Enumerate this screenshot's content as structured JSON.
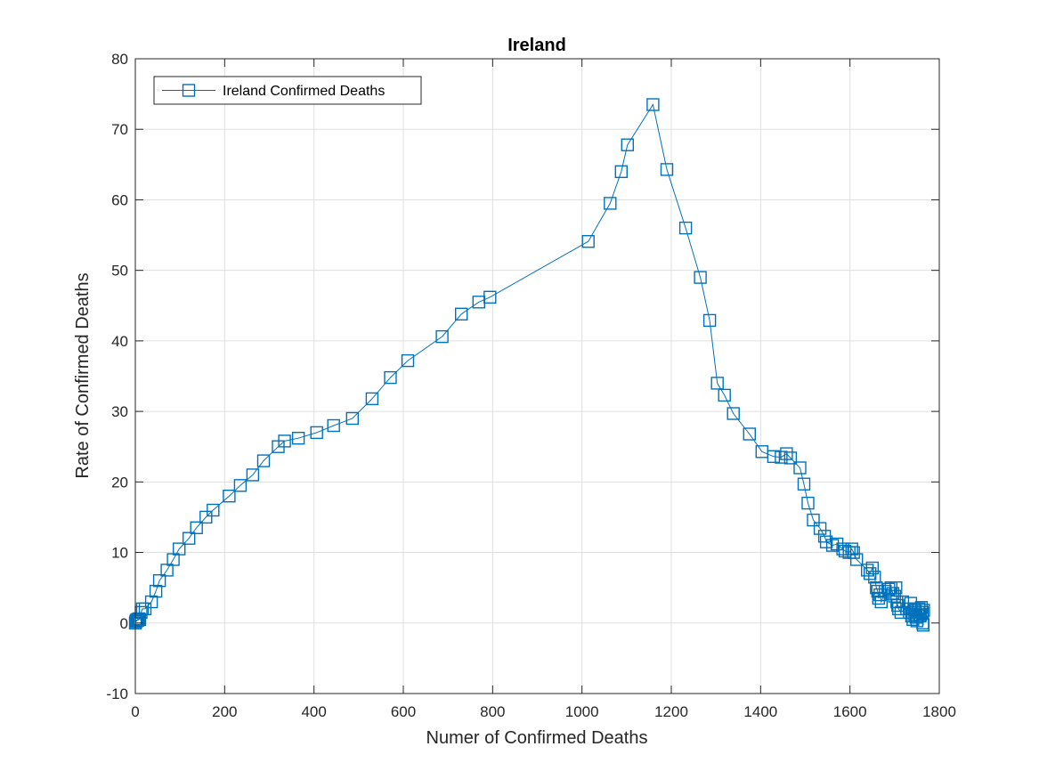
{
  "chart_data": {
    "type": "line",
    "title": "Ireland",
    "xlabel": "Numer of Confirmed Deaths",
    "ylabel": "Rate of Confirmed Deaths",
    "xlim": [
      0,
      1800
    ],
    "ylim": [
      -10,
      80
    ],
    "xticks": [
      0,
      200,
      400,
      600,
      800,
      1000,
      1200,
      1400,
      1600,
      1800
    ],
    "yticks": [
      -10,
      0,
      10,
      20,
      30,
      40,
      50,
      60,
      70,
      80
    ],
    "xtick_labels": [
      "0",
      "200",
      "400",
      "600",
      "800",
      "1000",
      "1200",
      "1400",
      "1600",
      "1800"
    ],
    "ytick_labels": [
      "-10",
      "0",
      "10",
      "20",
      "30",
      "40",
      "50",
      "60",
      "70",
      "80"
    ],
    "grid": true,
    "legend_position": "top-left",
    "series": [
      {
        "name": "Ireland Confirmed Deaths",
        "color": "#0072BD",
        "marker": "square",
        "x": [
          0,
          1,
          2,
          3,
          5,
          6,
          8,
          10,
          13,
          16,
          22,
          36,
          46,
          54,
          71,
          85,
          98,
          120,
          137,
          158,
          174,
          210,
          235,
          263,
          287,
          320,
          334,
          365,
          406,
          444,
          486,
          530,
          571,
          610,
          687,
          730,
          769,
          794,
          1014,
          1063,
          1088,
          1102,
          1159,
          1190,
          1232,
          1265,
          1286,
          1303,
          1319,
          1339,
          1375,
          1403,
          1429,
          1446,
          1458,
          1467,
          1488,
          1497,
          1506,
          1518,
          1533,
          1543,
          1547,
          1561,
          1571,
          1584,
          1589,
          1598,
          1604,
          1608,
          1615,
          1639,
          1645,
          1650,
          1655,
          1659,
          1662,
          1664,
          1667,
          1670,
          1679,
          1687,
          1692,
          1696,
          1700,
          1703,
          1705,
          1707,
          1709,
          1714,
          1718,
          1727,
          1733,
          1736,
          1738,
          1741,
          1743,
          1745,
          1746,
          1748,
          1750,
          1753,
          1755,
          1757,
          1758,
          1760,
          1762,
          1763,
          1764,
          1765
        ],
        "y": [
          0,
          0.2,
          0.4,
          0.3,
          0.5,
          0.4,
          0.6,
          0.5,
          1.5,
          2,
          2,
          3,
          4.5,
          6,
          7.5,
          9,
          10.5,
          12,
          13.5,
          15,
          16,
          18,
          19.5,
          21,
          23,
          25,
          25.8,
          26.2,
          27,
          28,
          29,
          31.8,
          34.8,
          37.2,
          40.6,
          43.8,
          45.5,
          46.2,
          54.1,
          59.5,
          64,
          67.8,
          73.5,
          64.3,
          56,
          49,
          42.9,
          34,
          32.3,
          29.7,
          26.8,
          24.3,
          23.6,
          23.5,
          24,
          23.4,
          22,
          19.7,
          17,
          14.6,
          13.4,
          12.3,
          11.5,
          11,
          11.2,
          10.5,
          10.2,
          10,
          10.5,
          10,
          9,
          7.5,
          7,
          7.8,
          6.5,
          5,
          4.5,
          3.5,
          4,
          3,
          4.5,
          4.8,
          5,
          4.2,
          3.8,
          5,
          3,
          2.5,
          2,
          1.5,
          3,
          2,
          1.5,
          2.8,
          1,
          0.5,
          2,
          1.2,
          1.8,
          0.8,
          0.3,
          1.5,
          2,
          1,
          1.2,
          2.2,
          1.5,
          0,
          -0.3,
          1.8
        ]
      }
    ]
  }
}
